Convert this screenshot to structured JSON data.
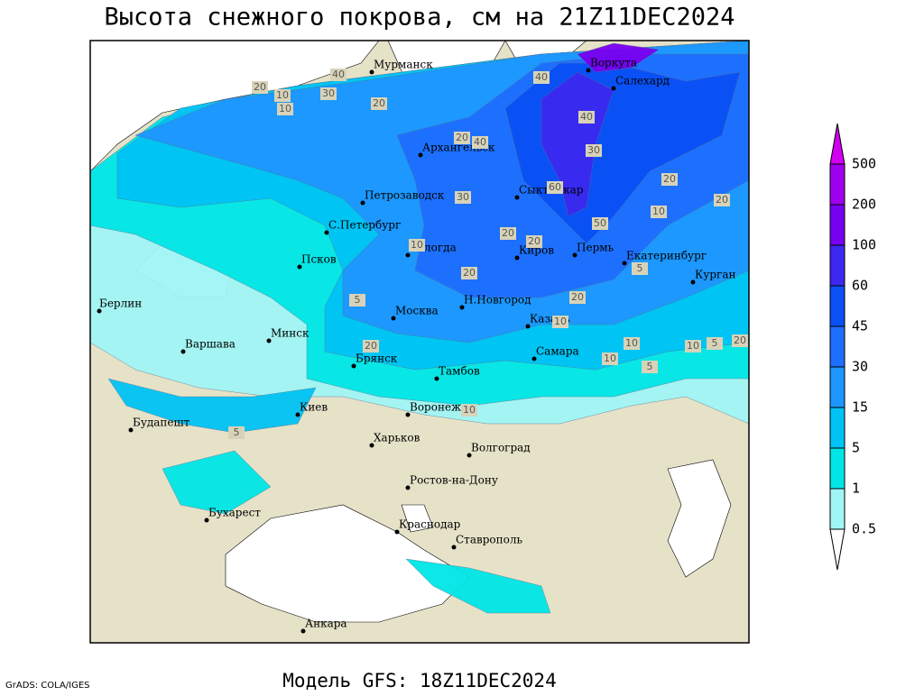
{
  "title": "Высота снежного покрова, см на 21Z11DEC2024",
  "footer": {
    "credit": "GrADS: COLA/IGES",
    "model": "Модель GFS: 18Z11DEC2024"
  },
  "legend": {
    "ticks": [
      0.5,
      1,
      5,
      15,
      30,
      45,
      60,
      100,
      200,
      500
    ],
    "colors": [
      "#ffffff",
      "#a0f5f5",
      "#00e6e6",
      "#00c3f5",
      "#1e96ff",
      "#1e6eff",
      "#0a50f5",
      "#3c28f0",
      "#7800f0",
      "#a000f0",
      "#d200f0"
    ]
  },
  "cities": [
    "Мурманск",
    "Воркута",
    "Салехард",
    "Архангельск",
    "Петрозаводск",
    "Сыктывкар",
    "С.Петербург",
    "Вологда",
    "Киров",
    "Пермь",
    "Екатеринбург",
    "Псков",
    "Курган",
    "Н.Новгород",
    "Берлин",
    "Москва",
    "Казань",
    "Минск",
    "Варшава",
    "Брянск",
    "Самара",
    "Тамбов",
    "Киев",
    "Воронеж",
    "Будапешт",
    "Харьков",
    "Волгоград",
    "Ростов-на-Дону",
    "Бухарест",
    "Краснодар",
    "Ставрополь",
    "Анкара"
  ],
  "contour_labels": [
    20,
    40,
    20,
    10,
    10,
    30,
    40,
    20,
    30,
    20,
    40,
    60,
    50,
    40,
    20,
    30,
    20,
    10,
    20,
    20,
    10,
    5,
    20,
    20,
    10,
    5,
    10,
    10,
    5,
    20,
    5,
    10,
    5,
    10
  ]
}
